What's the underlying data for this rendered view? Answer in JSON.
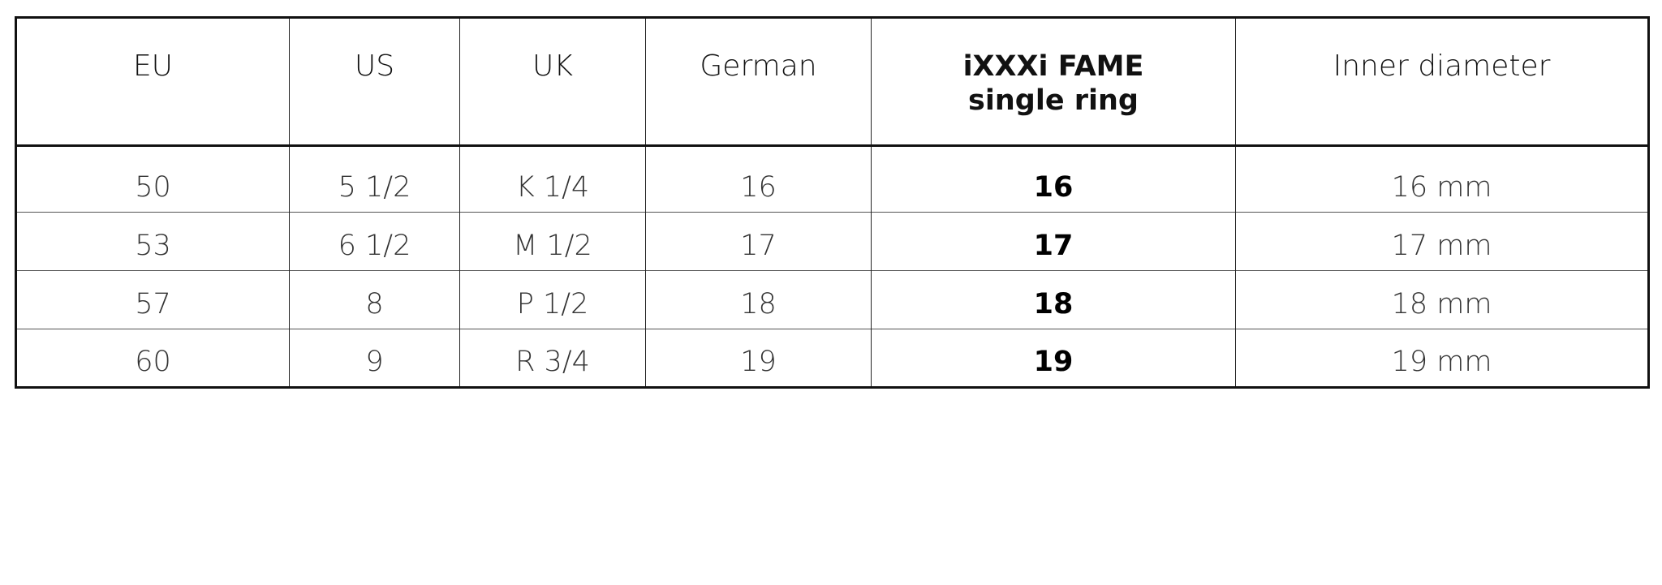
{
  "table": {
    "headers": [
      "EU",
      "US",
      "UK",
      "German",
      "iXXXi FAME\nsingle ring",
      "Inner diameter"
    ],
    "header_lines": {
      "fame_line1": "iXXXi FAME",
      "fame_line2": "single ring"
    },
    "rows": [
      [
        "50",
        "5 1/2",
        "K 1/4",
        "16",
        "16",
        "16 mm"
      ],
      [
        "53",
        "6 1/2",
        "M 1/2",
        "17",
        "17",
        "17 mm"
      ],
      [
        "57",
        "8",
        "P 1/2",
        "18",
        "18",
        "18 mm"
      ],
      [
        "60",
        "9",
        "R 3/4",
        "19",
        "19",
        "19 mm"
      ]
    ]
  }
}
